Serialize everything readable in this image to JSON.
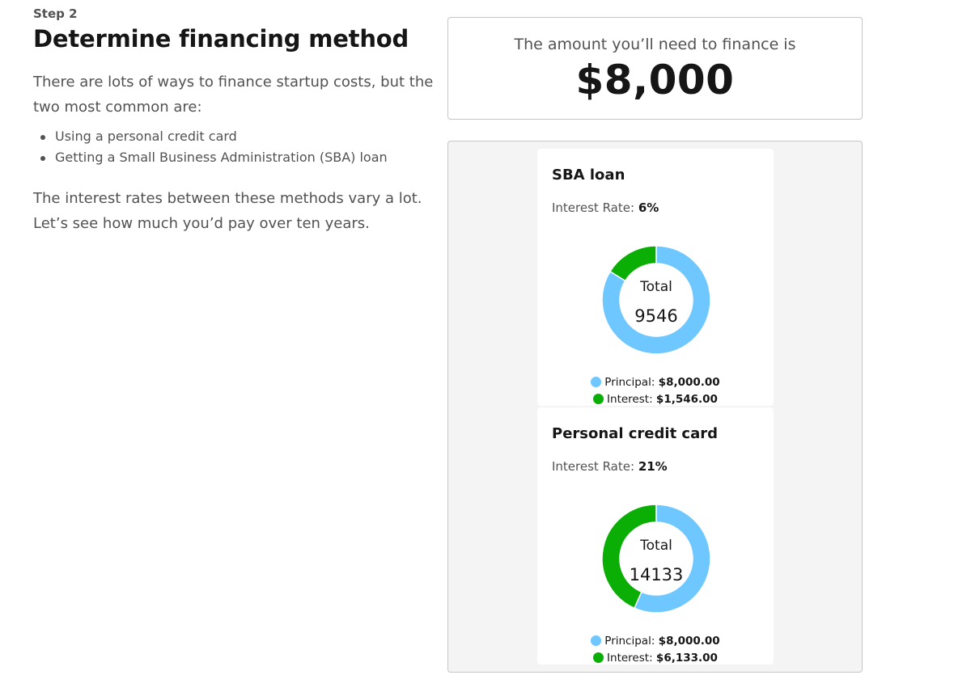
{
  "intro": {
    "step_label": "Step 2",
    "title": "Determine financing method",
    "paragraph": "There are lots of ways to finance startup costs, but the two most common are:",
    "methods": [
      "Using a personal credit card",
      "Getting a Small Business Administration (SBA) loan"
    ],
    "outro": "The interest rates between these methods vary a lot. Let’s see how much you’d pay over ten years."
  },
  "amount_card": {
    "caption": "The amount you’ll need to finance is",
    "value": "$8,000"
  },
  "colors": {
    "principal": "#6ec7ff",
    "interest": "#0aae05"
  },
  "loans": [
    {
      "title": "SBA loan",
      "rate_label": "Interest Rate:",
      "rate_value": "6%",
      "total_label": "Total",
      "total_value": "9546",
      "principal": 8000,
      "interest": 1546,
      "principal_label": "Principal:",
      "principal_text": "$8,000.00",
      "interest_label": "Interest:",
      "interest_text": "$1,546.00"
    },
    {
      "title": "Personal credit card",
      "rate_label": "Interest Rate:",
      "rate_value": "21%",
      "total_label": "Total",
      "total_value": "14133",
      "principal": 8000,
      "interest": 6133,
      "principal_label": "Principal:",
      "principal_text": "$8,000.00",
      "interest_label": "Interest:",
      "interest_text": "$6,133.00"
    }
  ]
}
